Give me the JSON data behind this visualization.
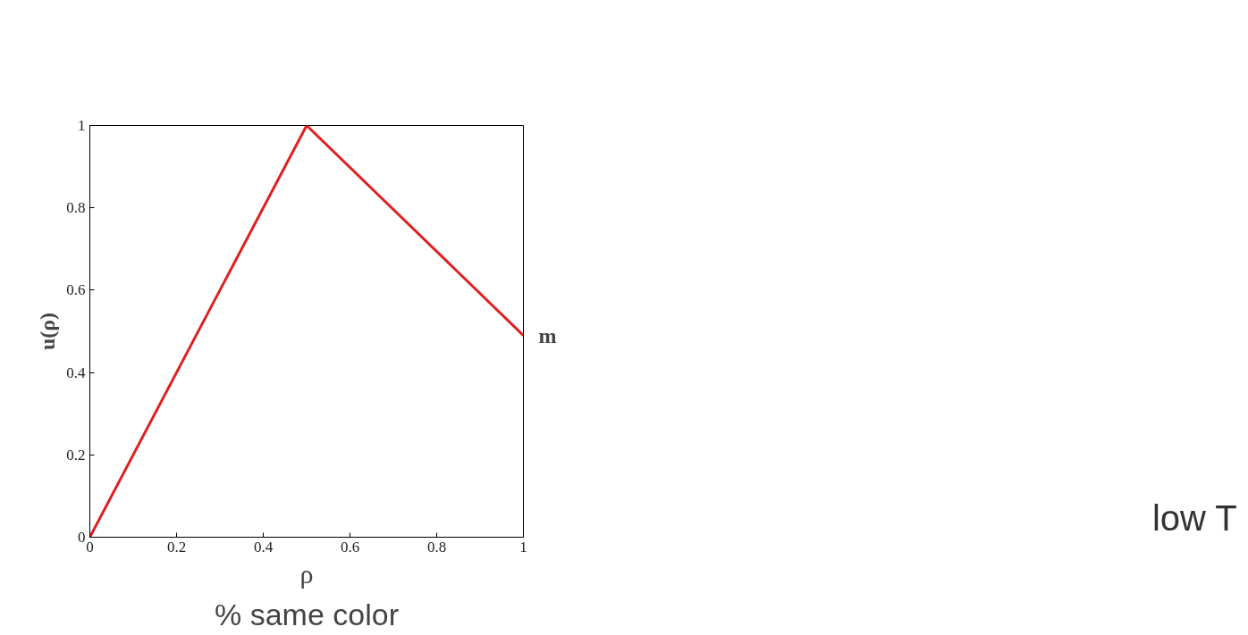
{
  "chart_data": {
    "type": "line",
    "xlabel": "ρ",
    "ylabel": "u(ρ)",
    "x": [
      0,
      0.5,
      1
    ],
    "series": [
      {
        "color": "#e02020",
        "values": [
          0,
          1,
          0.49
        ]
      }
    ],
    "xlim": [
      0,
      1
    ],
    "ylim": [
      0,
      1
    ],
    "xticks": [
      0,
      0.2,
      0.4,
      0.6,
      0.8,
      1
    ],
    "yticks": [
      0,
      0.2,
      0.4,
      0.6,
      0.8,
      1
    ],
    "grid": false,
    "marker": "none",
    "line_style": "solid",
    "annotations": [
      {
        "text": "m",
        "x": 1,
        "y": 0.49
      },
      "% same color",
      "low T"
    ]
  }
}
